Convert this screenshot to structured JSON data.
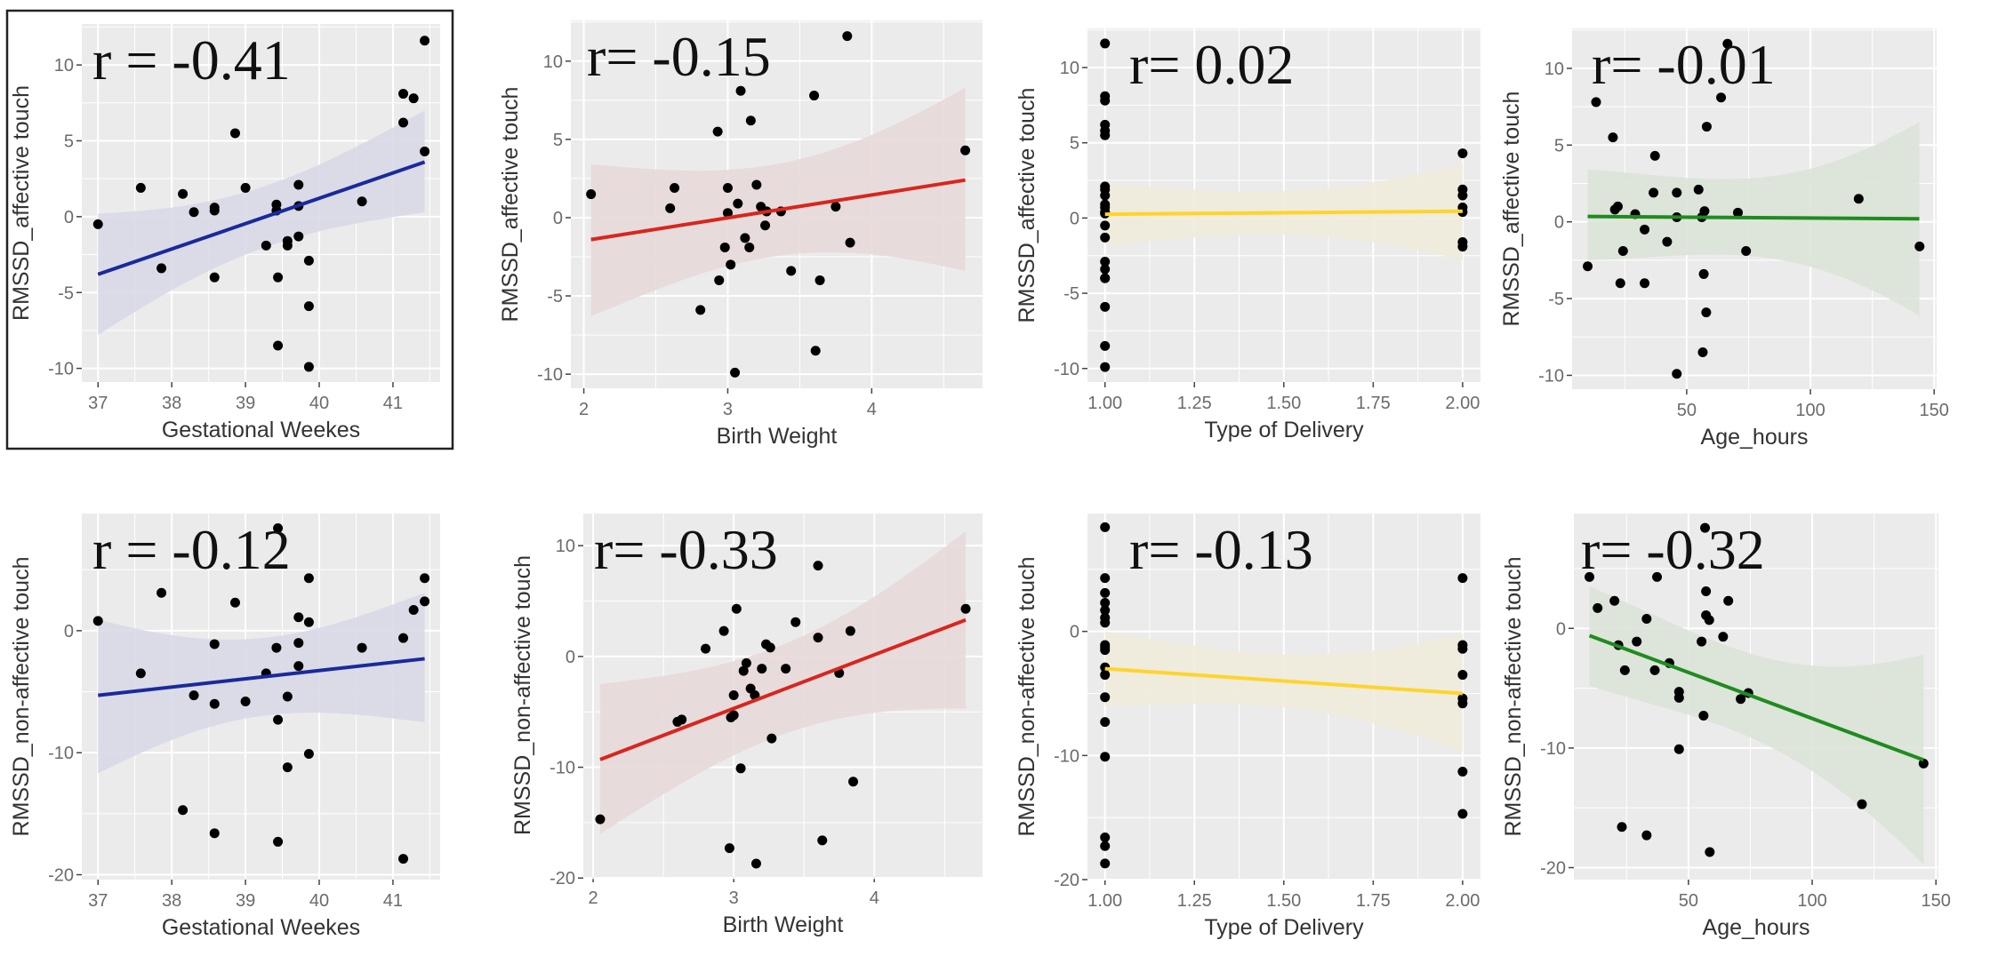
{
  "chart_data": [
    {
      "type": "scatter",
      "r_label": "r = -0.41",
      "xlabel": "Gestational Weekes",
      "ylabel": "RMSSD_affective touch",
      "xlim": [
        36.78,
        41.64
      ],
      "ylim": [
        -10.9,
        12.7
      ],
      "xticks": [
        "37",
        "38",
        "39",
        "40",
        "41"
      ],
      "yticks": [
        "-10",
        "-5",
        "0",
        "5",
        "10"
      ],
      "color": "#1a2a9c",
      "band_color": "#d8d9e6",
      "highlighted": true,
      "fit": {
        "x": [
          37,
          41.43
        ],
        "y": [
          -3.8,
          3.6
        ],
        "lower": [
          -7.8,
          0.3
        ],
        "upper": [
          0.2,
          7.0
        ]
      },
      "points": [
        [
          37,
          -0.5
        ],
        [
          37.58,
          1.9
        ],
        [
          37.86,
          -3.4
        ],
        [
          38.15,
          1.5
        ],
        [
          38.3,
          0.3
        ],
        [
          38.58,
          0.6
        ],
        [
          38.58,
          0.4
        ],
        [
          38.58,
          -4
        ],
        [
          38.86,
          5.5
        ],
        [
          39,
          1.9
        ],
        [
          39.28,
          -1.9
        ],
        [
          39.42,
          0.8
        ],
        [
          39.42,
          0.4
        ],
        [
          39.44,
          -4
        ],
        [
          39.44,
          -8.5
        ],
        [
          39.57,
          -1.6
        ],
        [
          39.57,
          -1.9
        ],
        [
          39.72,
          2.1
        ],
        [
          39.72,
          0.7
        ],
        [
          39.72,
          -1.3
        ],
        [
          39.86,
          -2.9
        ],
        [
          39.86,
          -5.9
        ],
        [
          39.86,
          -9.9
        ],
        [
          40.58,
          1
        ],
        [
          41.14,
          8.1
        ],
        [
          41.14,
          6.2
        ],
        [
          41.28,
          7.8
        ],
        [
          41.43,
          11.6
        ],
        [
          41.43,
          4.3
        ]
      ]
    },
    {
      "type": "scatter",
      "r_label": "r= -0.15",
      "xlabel": "Birth Weight",
      "ylabel": "RMSSD_affective touch",
      "xlim": [
        1.91,
        4.77
      ],
      "ylim": [
        -10.9,
        12.6
      ],
      "xticks": [
        "2",
        "3",
        "4"
      ],
      "yticks": [
        "-10",
        "-5",
        "0",
        "5",
        "10"
      ],
      "color": "#d8261e",
      "band_color": "#e8d9d9",
      "highlighted": false,
      "fit": {
        "x": [
          2.05,
          4.65
        ],
        "y": [
          -1.4,
          2.4
        ],
        "lower": [
          -6.3,
          -3.4
        ],
        "upper": [
          3.4,
          8.3
        ]
      },
      "points": [
        [
          2.05,
          1.5
        ],
        [
          2.6,
          0.6
        ],
        [
          2.63,
          1.9
        ],
        [
          2.81,
          -5.9
        ],
        [
          2.93,
          5.5
        ],
        [
          2.94,
          -4
        ],
        [
          2.98,
          -1.9
        ],
        [
          3.0,
          1.9
        ],
        [
          3.0,
          0.3
        ],
        [
          3.02,
          -3
        ],
        [
          3.05,
          -9.9
        ],
        [
          3.07,
          0.9
        ],
        [
          3.09,
          8.1
        ],
        [
          3.12,
          -1.3
        ],
        [
          3.15,
          -1.9
        ],
        [
          3.16,
          6.2
        ],
        [
          3.2,
          2.1
        ],
        [
          3.23,
          0.7
        ],
        [
          3.26,
          -0.5
        ],
        [
          3.27,
          0.4
        ],
        [
          3.37,
          0.4
        ],
        [
          3.44,
          -3.4
        ],
        [
          3.6,
          7.8
        ],
        [
          3.61,
          -8.5
        ],
        [
          3.64,
          -4
        ],
        [
          3.75,
          0.7
        ],
        [
          3.83,
          11.6
        ],
        [
          3.85,
          -1.6
        ],
        [
          4.65,
          4.3
        ]
      ]
    },
    {
      "type": "scatter",
      "r_label": "r= 0.02",
      "xlabel": "Type of Delivery",
      "ylabel": "RMSSD_affective touch",
      "xlim": [
        0.951,
        2.05
      ],
      "ylim": [
        -10.9,
        12.6
      ],
      "xticks": [
        "1.00",
        "1.25",
        "1.50",
        "1.75",
        "2.00"
      ],
      "yticks": [
        "-10",
        "-5",
        "0",
        "5",
        "10"
      ],
      "color": "#ffd42a",
      "band_color": "#efebdc",
      "highlighted": false,
      "fit": {
        "x": [
          1,
          2
        ],
        "y": [
          0.25,
          0.45
        ],
        "lower": [
          -1.8,
          -2.8
        ],
        "upper": [
          2.3,
          3.6
        ]
      },
      "points": [
        [
          1,
          11.6
        ],
        [
          1,
          8.1
        ],
        [
          1,
          7.8
        ],
        [
          1,
          6.2
        ],
        [
          1,
          5.8
        ],
        [
          1,
          5.5
        ],
        [
          1,
          2.1
        ],
        [
          1,
          1.9
        ],
        [
          1,
          1.5
        ],
        [
          1,
          0.9
        ],
        [
          1,
          0.7
        ],
        [
          1,
          0.4
        ],
        [
          1,
          0.3
        ],
        [
          1,
          -0.5
        ],
        [
          1,
          -1.3
        ],
        [
          1,
          -2.9
        ],
        [
          1,
          -3.4
        ],
        [
          1,
          -4
        ],
        [
          1,
          -4
        ],
        [
          1,
          -5.9
        ],
        [
          1,
          -8.5
        ],
        [
          1,
          -9.9
        ],
        [
          2,
          4.3
        ],
        [
          2,
          1.9
        ],
        [
          2,
          1.5
        ],
        [
          2,
          0.7
        ],
        [
          2,
          0.4
        ],
        [
          2,
          -1.6
        ],
        [
          2,
          -1.9
        ]
      ]
    },
    {
      "type": "scatter",
      "r_label": "r= -0.01",
      "xlabel": "Age_hours",
      "ylabel": "RMSSD_affective touch",
      "xlim": [
        3.7,
        151
      ],
      "ylim": [
        -10.9,
        12.6
      ],
      "xticks": [
        "50",
        "100",
        "150"
      ],
      "yticks": [
        "-10",
        "-5",
        "0",
        "5",
        "10"
      ],
      "color": "#1e8c1e",
      "band_color": "#dce3d7",
      "highlighted": false,
      "fit": {
        "x": [
          10,
          144
        ],
        "y": [
          0.35,
          0.2
        ],
        "lower": [
          -2.5,
          -6.1
        ],
        "upper": [
          3.4,
          6.5
        ]
      },
      "points": [
        [
          10,
          -2.9
        ],
        [
          13.4,
          7.8
        ],
        [
          20.2,
          5.5
        ],
        [
          21,
          0.8
        ],
        [
          22.2,
          1.0
        ],
        [
          23.2,
          -4
        ],
        [
          24.3,
          -1.9
        ],
        [
          29.2,
          0.5
        ],
        [
          33,
          -0.5
        ],
        [
          33,
          -4
        ],
        [
          36.6,
          1.9
        ],
        [
          37.2,
          4.3
        ],
        [
          42.1,
          -1.3
        ],
        [
          46,
          1.9
        ],
        [
          46,
          0.3
        ],
        [
          46,
          -9.9
        ],
        [
          54.8,
          2.1
        ],
        [
          56.1,
          0.3
        ],
        [
          56.5,
          -8.5
        ],
        [
          56.9,
          -3.4
        ],
        [
          57.2,
          0.7
        ],
        [
          57.9,
          -5.9
        ],
        [
          58.1,
          6.2
        ],
        [
          63.9,
          8.1
        ],
        [
          66.5,
          11.6
        ],
        [
          70.7,
          0.6
        ],
        [
          74,
          -1.9
        ],
        [
          119.5,
          1.5
        ],
        [
          144.1,
          -1.6
        ]
      ]
    },
    {
      "type": "scatter",
      "r_label": "r = -0.12",
      "xlabel": "Gestational Weekes",
      "ylabel": "RMSSD_non-affective touch",
      "xlim": [
        36.78,
        41.64
      ],
      "ylim": [
        -20.4,
        9.6
      ],
      "xticks": [
        "37",
        "38",
        "39",
        "40",
        "41"
      ],
      "yticks": [
        "-20",
        "-10",
        "0"
      ],
      "color": "#1a2a9c",
      "band_color": "#d8d9e6",
      "highlighted": false,
      "fit": {
        "x": [
          37,
          41.43
        ],
        "y": [
          -5.3,
          -2.3
        ],
        "lower": [
          -11.7,
          -7.5
        ],
        "upper": [
          0.9,
          3.1
        ]
      },
      "points": [
        [
          37,
          0.8
        ],
        [
          37.58,
          -3.5
        ],
        [
          37.86,
          3.1
        ],
        [
          38.15,
          -14.7
        ],
        [
          38.3,
          -5.3
        ],
        [
          38.58,
          -1.1
        ],
        [
          38.58,
          -6
        ],
        [
          38.58,
          -16.6
        ],
        [
          38.86,
          2.3
        ],
        [
          39,
          -5.8
        ],
        [
          39.28,
          -3.5
        ],
        [
          39.42,
          -1.4
        ],
        [
          39.44,
          -7.3
        ],
        [
          39.44,
          -17.3
        ],
        [
          39.44,
          8.4
        ],
        [
          39.57,
          -5.4
        ],
        [
          39.57,
          -11.2
        ],
        [
          39.72,
          1.1
        ],
        [
          39.72,
          -1
        ],
        [
          39.72,
          -2.9
        ],
        [
          39.86,
          4.3
        ],
        [
          39.86,
          0.7
        ],
        [
          39.86,
          -10.1
        ],
        [
          40.58,
          -1.4
        ],
        [
          41.14,
          -0.6
        ],
        [
          41.14,
          -18.7
        ],
        [
          41.28,
          1.7
        ],
        [
          41.43,
          4.3
        ],
        [
          41.43,
          2.4
        ]
      ]
    },
    {
      "type": "scatter",
      "r_label": "r= -0.33",
      "xlabel": "Birth Weight",
      "ylabel": "RMSSD_non-affective touch",
      "xlim": [
        1.93,
        4.77
      ],
      "ylim": [
        -19.9,
        12.9
      ],
      "xticks": [
        "2",
        "3",
        "4"
      ],
      "yticks": [
        "-20",
        "-10",
        "0",
        "10"
      ],
      "color": "#d8261e",
      "band_color": "#e8d9d9",
      "highlighted": false,
      "fit": {
        "x": [
          2.05,
          4.65
        ],
        "y": [
          -9.3,
          3.3
        ],
        "lower": [
          -16.0,
          -4.7
        ],
        "upper": [
          -2.5,
          11.3
        ]
      },
      "points": [
        [
          2.05,
          -14.7
        ],
        [
          2.6,
          -5.9
        ],
        [
          2.63,
          -5.7
        ],
        [
          2.8,
          0.7
        ],
        [
          2.93,
          2.3
        ],
        [
          2.97,
          -17.3
        ],
        [
          2.98,
          -5.5
        ],
        [
          3.0,
          -3.5
        ],
        [
          3.0,
          -5.3
        ],
        [
          3.02,
          4.3
        ],
        [
          3.05,
          -10.1
        ],
        [
          3.07,
          -1.3
        ],
        [
          3.09,
          -0.6
        ],
        [
          3.12,
          -2.9
        ],
        [
          3.15,
          -3.5
        ],
        [
          3.16,
          -18.7
        ],
        [
          3.2,
          -1.1
        ],
        [
          3.23,
          1.1
        ],
        [
          3.26,
          0.8
        ],
        [
          3.27,
          -7.4
        ],
        [
          3.37,
          -1.1
        ],
        [
          3.44,
          3.1
        ],
        [
          3.6,
          1.7
        ],
        [
          3.6,
          8.2
        ],
        [
          3.63,
          -16.6
        ],
        [
          3.75,
          -1.5
        ],
        [
          3.83,
          2.3
        ],
        [
          3.85,
          -11.3
        ],
        [
          4.65,
          4.3
        ]
      ]
    },
    {
      "type": "scatter",
      "r_label": "r= -0.13",
      "xlabel": "Type of Delivery",
      "ylabel": "RMSSD_non-affective touch",
      "xlim": [
        0.951,
        2.05
      ],
      "ylim": [
        -20.0,
        9.5
      ],
      "xticks": [
        "1.00",
        "1.25",
        "1.50",
        "1.75",
        "2.00"
      ],
      "yticks": [
        "-20",
        "-10",
        "0"
      ],
      "color": "#ffd42a",
      "band_color": "#efebdc",
      "highlighted": false,
      "fit": {
        "x": [
          1,
          2
        ],
        "y": [
          -3.0,
          -5.0
        ],
        "lower": [
          -6.0,
          -9.7
        ],
        "upper": [
          0.0,
          -0.2
        ]
      },
      "points": [
        [
          1,
          8.4
        ],
        [
          1,
          4.3
        ],
        [
          1,
          3.1
        ],
        [
          1,
          2.3
        ],
        [
          1,
          1.7
        ],
        [
          1,
          1.1
        ],
        [
          1,
          0.7
        ],
        [
          1,
          -1.1
        ],
        [
          1,
          -1.3
        ],
        [
          1,
          -1.5
        ],
        [
          1,
          -2.9
        ],
        [
          1,
          -3.5
        ],
        [
          1,
          -5.3
        ],
        [
          1,
          -7.3
        ],
        [
          1,
          -10.1
        ],
        [
          1,
          -16.6
        ],
        [
          1,
          -17.3
        ],
        [
          1,
          -18.7
        ],
        [
          2,
          4.3
        ],
        [
          2,
          -1.1
        ],
        [
          2,
          -1.4
        ],
        [
          2,
          -3.5
        ],
        [
          2,
          -5.4
        ],
        [
          2,
          -5.8
        ],
        [
          2,
          -11.3
        ],
        [
          2,
          -14.7
        ]
      ]
    },
    {
      "type": "scatter",
      "r_label": "r= -0.32",
      "xlabel": "Age_hours",
      "ylabel": "RMSSD_non-affective touch",
      "xlim": [
        3.7,
        151
      ],
      "ylim": [
        -21.0,
        9.6
      ],
      "xticks": [
        "50",
        "100",
        "150"
      ],
      "yticks": [
        "-20",
        "-10",
        "0"
      ],
      "color": "#1e8c1e",
      "band_color": "#dce3d7",
      "highlighted": false,
      "fit": {
        "x": [
          10,
          145
        ],
        "y": [
          -0.6,
          -11.0
        ],
        "lower": [
          -4.8,
          -19.7
        ],
        "upper": [
          3.5,
          -2.2
        ]
      },
      "points": [
        [
          10,
          4.3
        ],
        [
          13.3,
          1.7
        ],
        [
          20.1,
          2.3
        ],
        [
          21.7,
          -1.4
        ],
        [
          23.1,
          -16.6
        ],
        [
          24.3,
          -3.5
        ],
        [
          29.1,
          -1.1
        ],
        [
          33.1,
          0.8
        ],
        [
          33.1,
          -17.3
        ],
        [
          36.4,
          -3.5
        ],
        [
          37.3,
          4.3
        ],
        [
          42.3,
          -2.9
        ],
        [
          46.2,
          -5.3
        ],
        [
          46.2,
          -5.8
        ],
        [
          46.2,
          -10.1
        ],
        [
          55.3,
          -1.1
        ],
        [
          56.1,
          -7.3
        ],
        [
          56.7,
          8.4
        ],
        [
          57.1,
          3.1
        ],
        [
          57.1,
          1.1
        ],
        [
          58.4,
          0.7
        ],
        [
          58.6,
          -18.7
        ],
        [
          64,
          -0.7
        ],
        [
          66.1,
          2.3
        ],
        [
          71.1,
          -5.9
        ],
        [
          74.2,
          -5.4
        ],
        [
          120.1,
          -14.7
        ],
        [
          145,
          -11.3
        ]
      ]
    }
  ]
}
